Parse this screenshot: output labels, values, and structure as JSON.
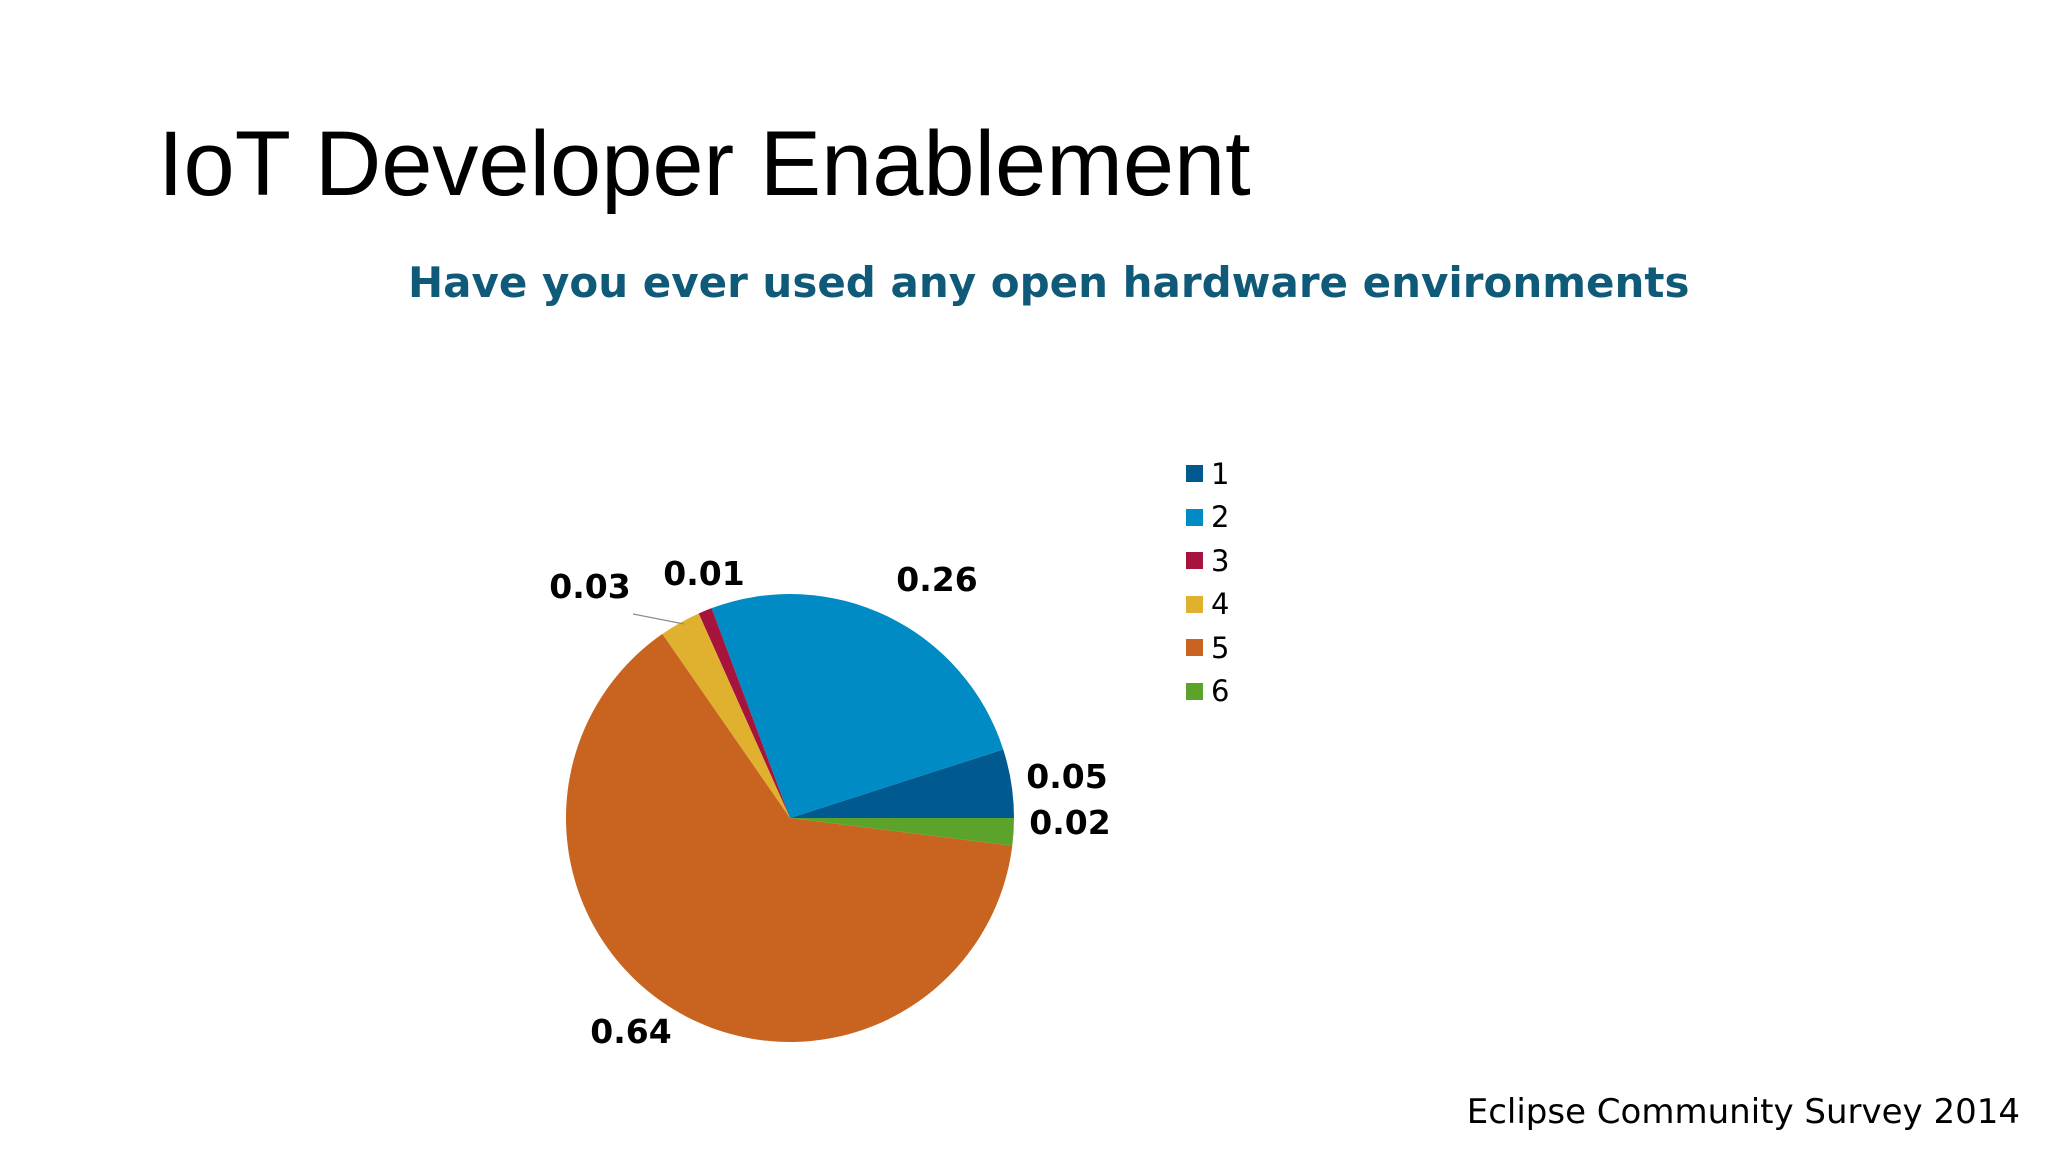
{
  "slide": {
    "title": "IoT Developer Enablement",
    "footer": "Eclipse Community Survey 2014"
  },
  "chart_data": {
    "type": "pie",
    "title": "Have you ever used any open hardware environments",
    "categories": [
      "1",
      "2",
      "3",
      "4",
      "5",
      "6"
    ],
    "values": [
      0.05,
      0.26,
      0.01,
      0.03,
      0.64,
      0.02
    ],
    "data_labels": [
      "0.05",
      "0.26",
      "0.01",
      "0.03",
      "0.64",
      "0.02"
    ],
    "colors": [
      "#00598f",
      "#008bc4",
      "#a6133c",
      "#e0b12f",
      "#c8641f",
      "#5ba32b"
    ],
    "legend": {
      "position": "right",
      "entries": [
        "1",
        "2",
        "3",
        "4",
        "5",
        "6"
      ]
    }
  }
}
